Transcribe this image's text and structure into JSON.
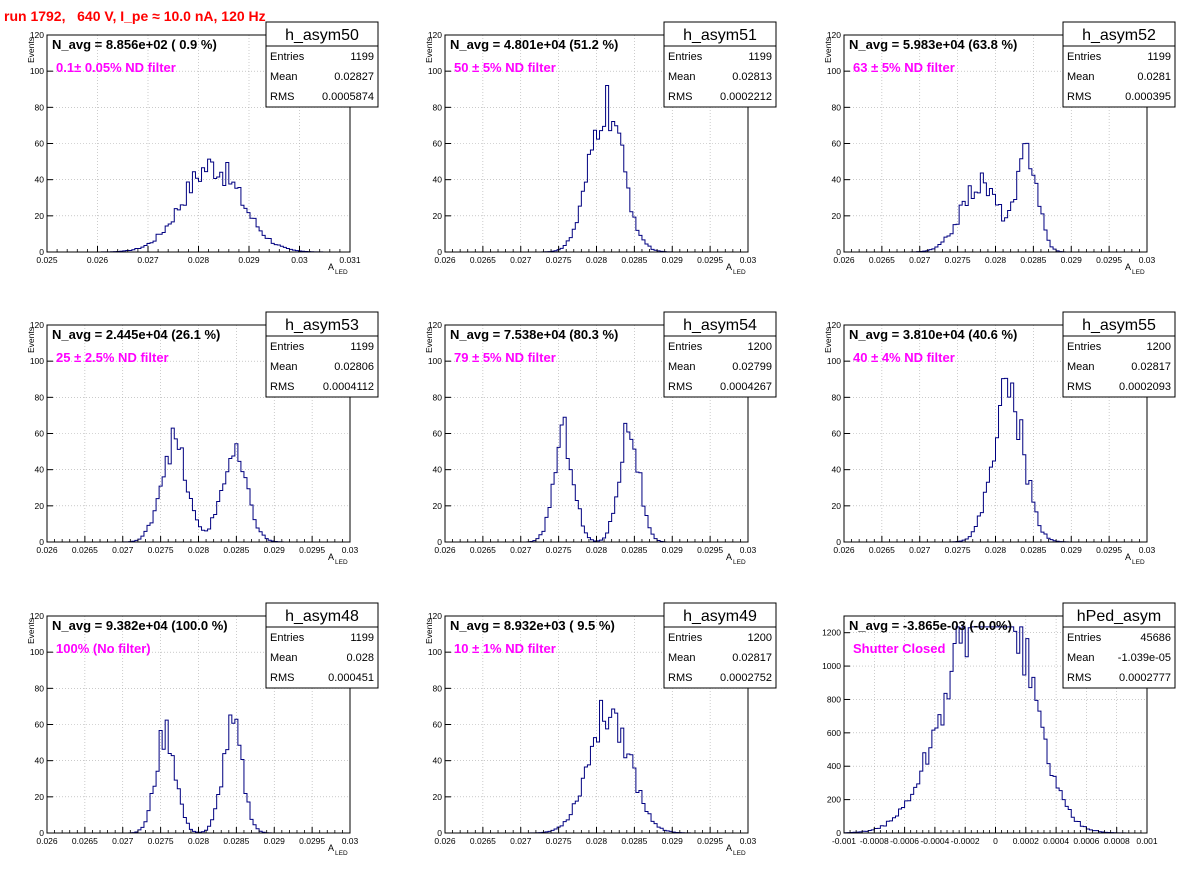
{
  "header": {
    "title": "run 1792,   640 V, I_pe ≈ 10.0 nA, 120 Hz"
  },
  "colors": {
    "hist": "#000080",
    "navg": "#000000",
    "filter": "#ff00ff",
    "title": "#ff0000",
    "grid": "#aaaaaa"
  },
  "chart_data": [
    {
      "type": "bar",
      "name": "h_asym50",
      "navg": "N_avg = 8.856e+02 ( 0.9 %)",
      "filter": "0.1± 0.05% ND filter",
      "stats": {
        "entries": "1199",
        "mean": "0.02827",
        "rms": "0.0005874"
      },
      "stats_labels": {
        "entries": "Entries",
        "mean": "Mean",
        "rms": "RMS"
      },
      "xlabel": "A",
      "xlabel_sub": "LED",
      "ylabel": "Events",
      "xlim": [
        0.025,
        0.031
      ],
      "ylim": [
        0,
        120
      ],
      "xticks": [
        0.025,
        0.026,
        0.027,
        0.028,
        0.029,
        0.03,
        0.031
      ],
      "xtick_labels": [
        "0.025",
        "0.026",
        "0.027",
        "0.028",
        "0.029",
        "0.03",
        "0.031"
      ],
      "yticks": [
        0,
        20,
        40,
        60,
        80,
        100,
        120
      ],
      "ytick_labels": [
        "0",
        "20",
        "40",
        "60",
        "80",
        "100",
        "120"
      ],
      "shape": [
        [
          0.02827,
          0.00058,
          48
        ]
      ]
    },
    {
      "type": "bar",
      "name": "h_asym51",
      "navg": "N_avg = 4.801e+04 (51.2 %)",
      "filter": "50 ± 5% ND filter",
      "stats": {
        "entries": "1199",
        "mean": "0.02813",
        "rms": "0.0002212"
      },
      "stats_labels": {
        "entries": "Entries",
        "mean": "Mean",
        "rms": "RMS"
      },
      "xlabel": "A",
      "xlabel_sub": "LED",
      "ylabel": "Events",
      "xlim": [
        0.026,
        0.03
      ],
      "ylim": [
        0,
        120
      ],
      "xticks": [
        0.026,
        0.0265,
        0.027,
        0.0275,
        0.028,
        0.0285,
        0.029,
        0.0295,
        0.03
      ],
      "xtick_labels": [
        "0.026",
        "0.0265",
        "0.027",
        "0.0275",
        "0.028",
        "0.0285",
        "0.029",
        "0.0295",
        "0.03"
      ],
      "yticks": [
        0,
        20,
        40,
        60,
        80,
        100,
        120
      ],
      "ytick_labels": [
        "0",
        "20",
        "40",
        "60",
        "80",
        "100",
        "120"
      ],
      "shape": [
        [
          0.02813,
          0.00022,
          80
        ]
      ]
    },
    {
      "type": "bar",
      "name": "h_asym52",
      "navg": "N_avg = 5.983e+04 (63.8 %)",
      "filter": "63 ± 5% ND filter",
      "stats": {
        "entries": "1199",
        "mean": "0.0281",
        "rms": "0.000395"
      },
      "stats_labels": {
        "entries": "Entries",
        "mean": "Mean",
        "rms": "RMS"
      },
      "xlabel": "A",
      "xlabel_sub": "LED",
      "ylabel": "Events",
      "xlim": [
        0.026,
        0.03
      ],
      "ylim": [
        0,
        120
      ],
      "xticks": [
        0.026,
        0.0265,
        0.027,
        0.0275,
        0.028,
        0.0285,
        0.029,
        0.0295,
        0.03
      ],
      "xtick_labels": [
        "0.026",
        "0.0265",
        "0.027",
        "0.0275",
        "0.028",
        "0.0285",
        "0.029",
        "0.0295",
        "0.03"
      ],
      "yticks": [
        0,
        20,
        40,
        60,
        80,
        100,
        120
      ],
      "ytick_labels": [
        "0",
        "20",
        "40",
        "60",
        "80",
        "100",
        "120"
      ],
      "shape": [
        [
          0.0278,
          0.00025,
          38
        ],
        [
          0.02843,
          0.00013,
          55
        ]
      ]
    },
    {
      "type": "bar",
      "name": "h_asym53",
      "navg": "N_avg = 2.445e+04 (26.1 %)",
      "filter": "25 ± 2.5% ND filter",
      "stats": {
        "entries": "1199",
        "mean": "0.02806",
        "rms": "0.0004112"
      },
      "stats_labels": {
        "entries": "Entries",
        "mean": "Mean",
        "rms": "RMS"
      },
      "xlabel": "A",
      "xlabel_sub": "LED",
      "ylabel": "Events",
      "xlim": [
        0.026,
        0.03
      ],
      "ylim": [
        0,
        120
      ],
      "xticks": [
        0.026,
        0.0265,
        0.027,
        0.0275,
        0.028,
        0.0285,
        0.029,
        0.0295,
        0.03
      ],
      "xtick_labels": [
        "0.026",
        "0.0265",
        "0.027",
        "0.0275",
        "0.028",
        "0.0285",
        "0.029",
        "0.0295",
        "0.03"
      ],
      "yticks": [
        0,
        20,
        40,
        60,
        80,
        100,
        120
      ],
      "ytick_labels": [
        "0",
        "20",
        "40",
        "60",
        "80",
        "100",
        "120"
      ],
      "shape": [
        [
          0.02767,
          0.00017,
          55
        ],
        [
          0.02847,
          0.00017,
          47
        ]
      ]
    },
    {
      "type": "bar",
      "name": "h_asym54",
      "navg": "N_avg = 7.538e+04 (80.3 %)",
      "filter": "79 ± 5% ND filter",
      "stats": {
        "entries": "1200",
        "mean": "0.02799",
        "rms": "0.0004267"
      },
      "stats_labels": {
        "entries": "Entries",
        "mean": "Mean",
        "rms": "RMS"
      },
      "xlabel": "A",
      "xlabel_sub": "LED",
      "ylabel": "Events",
      "xlim": [
        0.026,
        0.03
      ],
      "ylim": [
        0,
        120
      ],
      "xticks": [
        0.026,
        0.0265,
        0.027,
        0.0275,
        0.028,
        0.0285,
        0.029,
        0.0295,
        0.03
      ],
      "xtick_labels": [
        "0.026",
        "0.0265",
        "0.027",
        "0.0275",
        "0.028",
        "0.0285",
        "0.029",
        "0.0295",
        "0.03"
      ],
      "yticks": [
        0,
        20,
        40,
        60,
        80,
        100,
        120
      ],
      "ytick_labels": [
        "0",
        "20",
        "40",
        "60",
        "80",
        "100",
        "120"
      ],
      "shape": [
        [
          0.02757,
          0.00013,
          60
        ],
        [
          0.02843,
          0.00013,
          64
        ]
      ]
    },
    {
      "type": "bar",
      "name": "h_asym55",
      "navg": "N_avg = 3.810e+04 (40.6 %)",
      "filter": "40 ± 4% ND filter",
      "stats": {
        "entries": "1200",
        "mean": "0.02817",
        "rms": "0.0002093"
      },
      "stats_labels": {
        "entries": "Entries",
        "mean": "Mean",
        "rms": "RMS"
      },
      "xlabel": "A",
      "xlabel_sub": "LED",
      "ylabel": "Events",
      "xlim": [
        0.026,
        0.03
      ],
      "ylim": [
        0,
        120
      ],
      "xticks": [
        0.026,
        0.0265,
        0.027,
        0.0275,
        0.028,
        0.0285,
        0.029,
        0.0295,
        0.03
      ],
      "xtick_labels": [
        "0.026",
        "0.0265",
        "0.027",
        "0.0275",
        "0.028",
        "0.0285",
        "0.029",
        "0.0295",
        "0.03"
      ],
      "yticks": [
        0,
        20,
        40,
        60,
        80,
        100,
        120
      ],
      "ytick_labels": [
        "0",
        "20",
        "40",
        "60",
        "80",
        "100",
        "120"
      ],
      "shape": [
        [
          0.02817,
          0.0002,
          84
        ]
      ]
    },
    {
      "type": "bar",
      "name": "h_asym48",
      "navg": "N_avg = 9.382e+04 (100.0 %)",
      "filter": "100% (No filter)",
      "stats": {
        "entries": "1199",
        "mean": "0.028",
        "rms": "0.000451"
      },
      "stats_labels": {
        "entries": "Entries",
        "mean": "Mean",
        "rms": "RMS"
      },
      "xlabel": "A",
      "xlabel_sub": "LED",
      "ylabel": "Events",
      "xlim": [
        0.026,
        0.03
      ],
      "ylim": [
        0,
        120
      ],
      "xticks": [
        0.026,
        0.0265,
        0.027,
        0.0275,
        0.028,
        0.0285,
        0.029,
        0.0295,
        0.03
      ],
      "xtick_labels": [
        "0.026",
        "0.0265",
        "0.027",
        "0.0275",
        "0.028",
        "0.0285",
        "0.029",
        "0.0295",
        "0.03"
      ],
      "yticks": [
        0,
        20,
        40,
        60,
        80,
        100,
        120
      ],
      "ytick_labels": [
        "0",
        "20",
        "40",
        "60",
        "80",
        "100",
        "120"
      ],
      "shape": [
        [
          0.02757,
          0.00013,
          56
        ],
        [
          0.02845,
          0.00013,
          58
        ]
      ]
    },
    {
      "type": "bar",
      "name": "h_asym49",
      "navg": "N_avg = 8.932e+03 ( 9.5 %)",
      "filter": "10 ± 1% ND filter",
      "stats": {
        "entries": "1200",
        "mean": "0.02817",
        "rms": "0.0002752"
      },
      "stats_labels": {
        "entries": "Entries",
        "mean": "Mean",
        "rms": "RMS"
      },
      "xlabel": "A",
      "xlabel_sub": "LED",
      "ylabel": "Events",
      "xlim": [
        0.026,
        0.03
      ],
      "ylim": [
        0,
        120
      ],
      "xticks": [
        0.026,
        0.0265,
        0.027,
        0.0275,
        0.028,
        0.0285,
        0.029,
        0.0295,
        0.03
      ],
      "xtick_labels": [
        "0.026",
        "0.0265",
        "0.027",
        "0.0275",
        "0.028",
        "0.0285",
        "0.029",
        "0.0295",
        "0.03"
      ],
      "yticks": [
        0,
        20,
        40,
        60,
        80,
        100,
        120
      ],
      "ytick_labels": [
        "0",
        "20",
        "40",
        "60",
        "80",
        "100",
        "120"
      ],
      "shape": [
        [
          0.02817,
          0.00027,
          68
        ]
      ]
    },
    {
      "type": "bar",
      "name": "hPed_asym",
      "navg": "N_avg = -3.865e-03 (-0.0%)",
      "filter": "Shutter Closed",
      "stats": {
        "entries": "45686",
        "mean": "-1.039e-05",
        "rms": "0.0002777"
      },
      "stats_labels": {
        "entries": "Entries",
        "mean": "Mean",
        "rms": "RMS"
      },
      "xlabel": "",
      "xlabel_sub": "",
      "ylabel": "",
      "xlim": [
        -0.001,
        0.001
      ],
      "ylim": [
        0,
        1300
      ],
      "xticks": [
        -0.001,
        -0.0008,
        -0.0006,
        -0.0004,
        -0.0002,
        0,
        0.0002,
        0.0004,
        0.0006,
        0.0008,
        0.001
      ],
      "xtick_labels": [
        "-0.001",
        "-0.0008",
        "-0.0006",
        "-0.0004",
        "-0.0002",
        "0",
        "0.0002",
        "0.0004",
        "0.0006",
        "0.0008",
        "0.001"
      ],
      "yticks": [
        0,
        200,
        400,
        600,
        800,
        1000,
        1200
      ],
      "ytick_labels": [
        "0",
        "200",
        "400",
        "600",
        "800",
        "1000",
        "1200"
      ],
      "shape": [
        [
          -0.00022,
          0.00022,
          720
        ],
        [
          6e-05,
          0.0002,
          1230
        ]
      ]
    }
  ]
}
